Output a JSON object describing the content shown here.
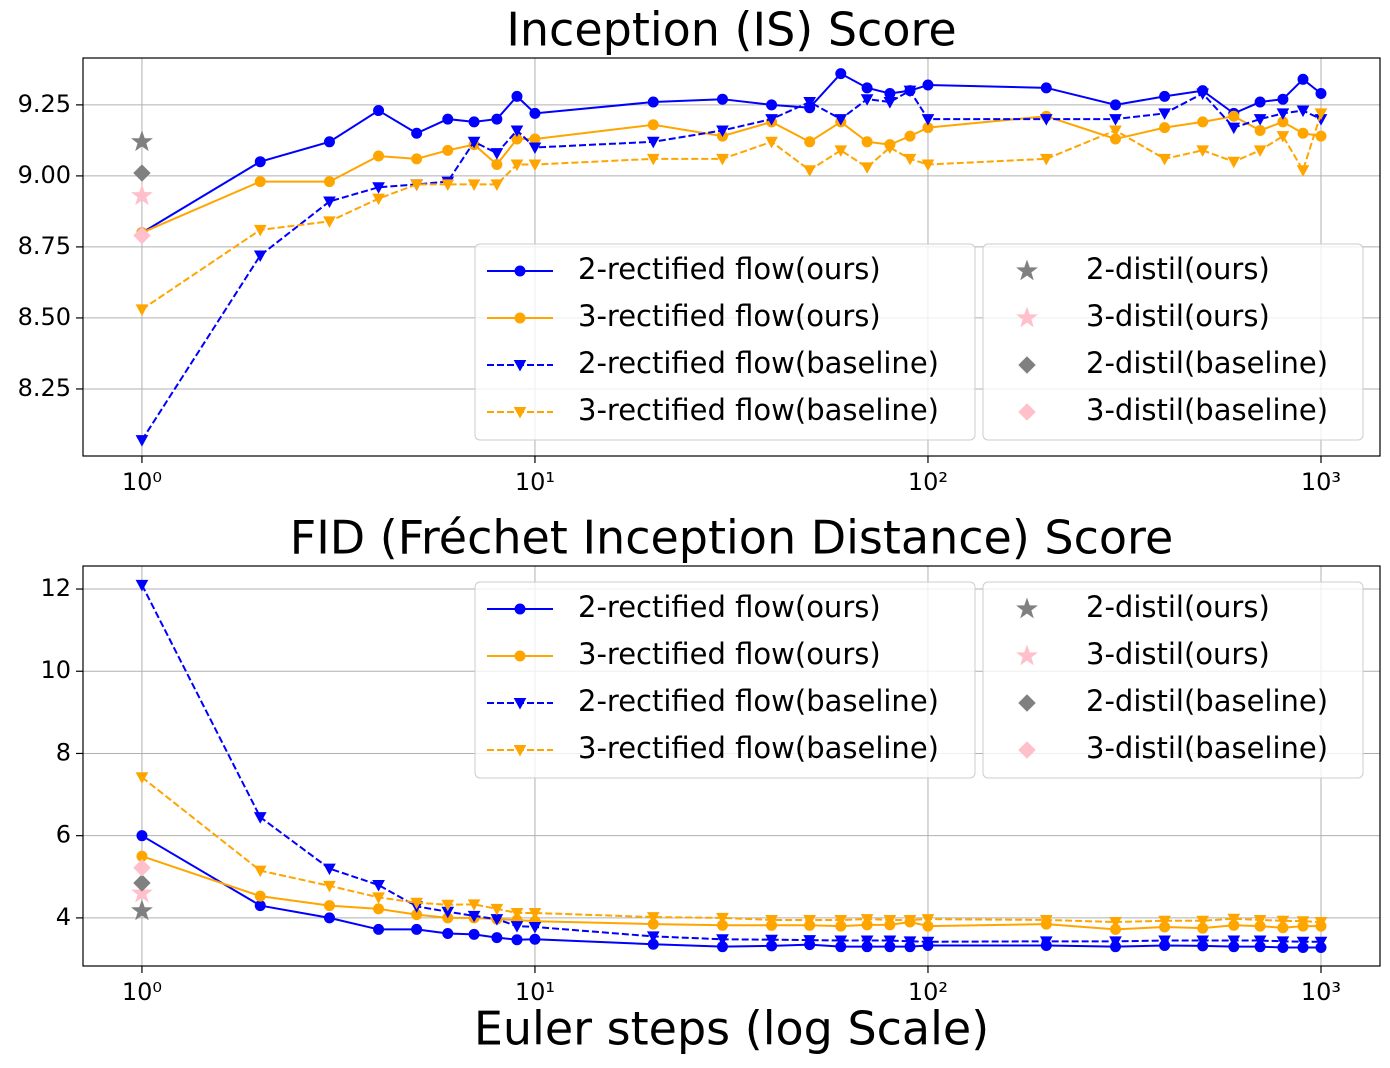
{
  "chart_data": [
    {
      "type": "line",
      "title": "Inception (IS) Score",
      "xscale": "log",
      "grid": true,
      "legend_loc": "lower right",
      "xlim": [
        0.708,
        1413
      ],
      "ylim": [
        8.014,
        9.415
      ],
      "xticks": [
        {
          "value": 1,
          "label": "10⁰"
        },
        {
          "value": 10,
          "label": "10¹"
        },
        {
          "value": 100,
          "label": "10²"
        },
        {
          "value": 1000,
          "label": "10³"
        }
      ],
      "yticks": [
        8.25,
        {
          "value": 8.5,
          "label": "8.50"
        },
        8.75,
        {
          "value": 9,
          "label": "9.00"
        },
        9.25
      ],
      "x": [
        1,
        2,
        3,
        4,
        5,
        6,
        7,
        8,
        9,
        10,
        20,
        30,
        40,
        50,
        60,
        70,
        80,
        90,
        100,
        200,
        300,
        400,
        500,
        600,
        700,
        800,
        900,
        1000
      ],
      "series": [
        {
          "name": "2-rectified flow(ours)",
          "color": "#0000ff",
          "linestyle": "solid",
          "marker": "circle",
          "values": [
            8.8,
            9.05,
            9.12,
            9.23,
            9.15,
            9.2,
            9.19,
            9.2,
            9.28,
            9.22,
            9.26,
            9.27,
            9.25,
            9.24,
            9.36,
            9.31,
            9.29,
            9.3,
            9.32,
            9.31,
            9.25,
            9.28,
            9.3,
            9.22,
            9.26,
            9.27,
            9.34,
            9.29
          ]
        },
        {
          "name": "3-rectified flow(ours)",
          "color": "#ffa500",
          "linestyle": "solid",
          "marker": "circle",
          "values": [
            8.8,
            8.98,
            8.98,
            9.07,
            9.06,
            9.09,
            9.11,
            9.04,
            9.13,
            9.13,
            9.18,
            9.14,
            9.19,
            9.12,
            9.19,
            9.12,
            9.11,
            9.14,
            9.17,
            9.21,
            9.13,
            9.17,
            9.19,
            9.21,
            9.16,
            9.19,
            9.15,
            9.14
          ]
        },
        {
          "name": "2-rectified flow(baseline)",
          "color": "#0000ff",
          "linestyle": "dashed",
          "marker": "triangle",
          "values": [
            8.07,
            8.72,
            8.91,
            8.96,
            8.97,
            8.98,
            9.12,
            9.08,
            9.16,
            9.1,
            9.12,
            9.16,
            9.2,
            9.26,
            9.2,
            9.27,
            9.26,
            9.3,
            9.2,
            9.2,
            9.2,
            9.22,
            9.29,
            9.17,
            9.2,
            9.22,
            9.23,
            9.2
          ]
        },
        {
          "name": "3-rectified flow(baseline)",
          "color": "#ffa500",
          "linestyle": "dashed",
          "marker": "triangle",
          "values": [
            8.53,
            8.81,
            8.84,
            8.92,
            8.97,
            8.97,
            8.97,
            8.97,
            9.04,
            9.04,
            9.06,
            9.06,
            9.12,
            9.02,
            9.09,
            9.03,
            9.1,
            9.06,
            9.04,
            9.06,
            9.16,
            9.06,
            9.09,
            9.05,
            9.09,
            9.14,
            9.02,
            9.22
          ]
        },
        {
          "name": "2-distil(ours)",
          "color": "#808080",
          "linestyle": "none",
          "marker": "star",
          "x": [
            1
          ],
          "values": [
            9.12
          ]
        },
        {
          "name": "3-distil(ours)",
          "color": "#ffc0cb",
          "linestyle": "none",
          "marker": "star",
          "x": [
            1
          ],
          "values": [
            8.93
          ]
        },
        {
          "name": "2-distil(baseline)",
          "color": "#808080",
          "linestyle": "none",
          "marker": "diamond",
          "x": [
            1
          ],
          "values": [
            9.01
          ]
        },
        {
          "name": "3-distil(baseline)",
          "color": "#ffc0cb",
          "linestyle": "none",
          "marker": "diamond",
          "x": [
            1
          ],
          "values": [
            8.79
          ]
        }
      ]
    },
    {
      "type": "line",
      "title": "FID (Fréchet Inception Distance) Score",
      "xlabel": "Euler steps (log Scale)",
      "xscale": "log",
      "grid": true,
      "legend_loc": "upper right",
      "xlim": [
        0.708,
        1413
      ],
      "ylim": [
        2.83,
        12.56
      ],
      "xticks": [
        {
          "value": 1,
          "label": "10⁰"
        },
        {
          "value": 10,
          "label": "10¹"
        },
        {
          "value": 100,
          "label": "10²"
        },
        {
          "value": 1000,
          "label": "10³"
        }
      ],
      "yticks": [
        4,
        6,
        8,
        10,
        12
      ],
      "x": [
        1,
        2,
        3,
        4,
        5,
        6,
        7,
        8,
        9,
        10,
        20,
        30,
        40,
        50,
        60,
        70,
        80,
        90,
        100,
        200,
        300,
        400,
        500,
        600,
        700,
        800,
        900,
        1000
      ],
      "series": [
        {
          "name": "2-rectified flow(ours)",
          "color": "#0000ff",
          "linestyle": "solid",
          "marker": "circle",
          "values": [
            6.0,
            4.3,
            4.0,
            3.72,
            3.72,
            3.62,
            3.6,
            3.52,
            3.47,
            3.48,
            3.36,
            3.3,
            3.32,
            3.35,
            3.3,
            3.3,
            3.3,
            3.3,
            3.33,
            3.33,
            3.3,
            3.33,
            3.32,
            3.3,
            3.3,
            3.28,
            3.28,
            3.28
          ]
        },
        {
          "name": "3-rectified flow(ours)",
          "color": "#ffa500",
          "linestyle": "solid",
          "marker": "circle",
          "values": [
            5.5,
            4.53,
            4.3,
            4.22,
            4.08,
            4.0,
            4.0,
            3.97,
            3.95,
            3.92,
            3.85,
            3.82,
            3.82,
            3.82,
            3.8,
            3.83,
            3.83,
            3.9,
            3.8,
            3.85,
            3.72,
            3.78,
            3.75,
            3.82,
            3.8,
            3.76,
            3.8,
            3.8
          ]
        },
        {
          "name": "2-rectified flow(baseline)",
          "color": "#0000ff",
          "linestyle": "dashed",
          "marker": "triangle",
          "values": [
            12.1,
            6.45,
            5.2,
            4.8,
            4.28,
            4.15,
            4.05,
            3.97,
            3.8,
            3.78,
            3.55,
            3.48,
            3.47,
            3.46,
            3.45,
            3.45,
            3.45,
            3.43,
            3.42,
            3.43,
            3.43,
            3.45,
            3.45,
            3.45,
            3.45,
            3.43,
            3.42,
            3.42
          ]
        },
        {
          "name": "3-rectified flow(baseline)",
          "color": "#ffa500",
          "linestyle": "dashed",
          "marker": "triangle",
          "values": [
            7.42,
            5.15,
            4.78,
            4.5,
            4.37,
            4.32,
            4.33,
            4.22,
            4.12,
            4.12,
            4.02,
            4.0,
            3.95,
            3.95,
            3.95,
            3.97,
            3.95,
            3.95,
            3.97,
            3.95,
            3.9,
            3.93,
            3.93,
            3.98,
            3.95,
            3.93,
            3.92,
            3.9
          ]
        },
        {
          "name": "2-distil(ours)",
          "color": "#808080",
          "linestyle": "none",
          "marker": "star",
          "x": [
            1
          ],
          "values": [
            4.17
          ]
        },
        {
          "name": "3-distil(ours)",
          "color": "#ffc0cb",
          "linestyle": "none",
          "marker": "star",
          "x": [
            1
          ],
          "values": [
            4.6
          ]
        },
        {
          "name": "2-distil(baseline)",
          "color": "#808080",
          "linestyle": "none",
          "marker": "diamond",
          "x": [
            1
          ],
          "values": [
            4.85
          ]
        },
        {
          "name": "3-distil(baseline)",
          "color": "#ffc0cb",
          "linestyle": "none",
          "marker": "diamond",
          "x": [
            1
          ],
          "values": [
            5.22
          ]
        }
      ]
    }
  ]
}
